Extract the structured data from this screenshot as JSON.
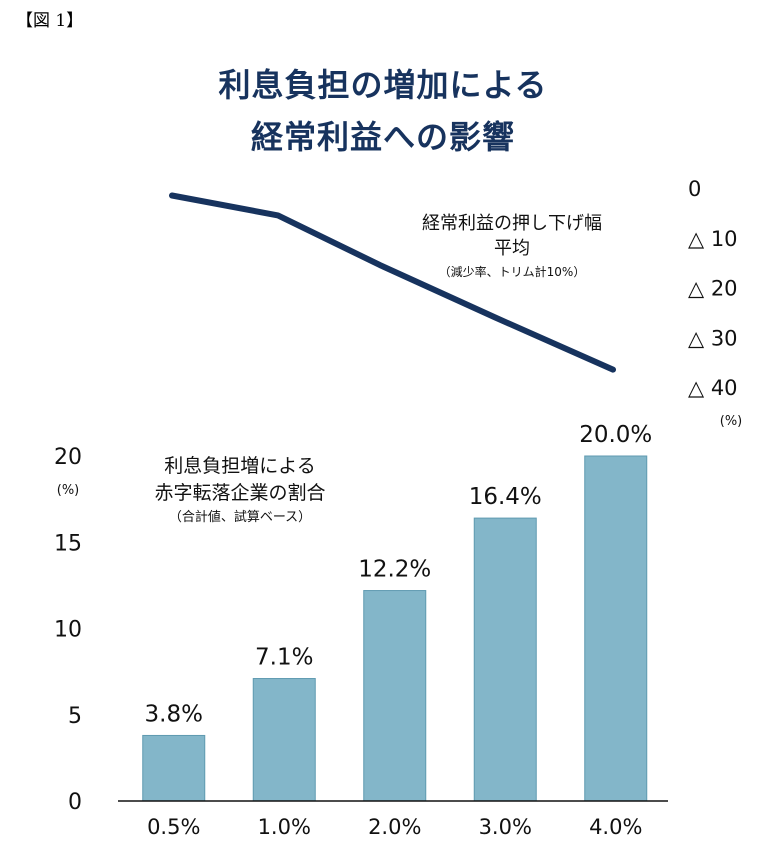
{
  "figure_label": "【図 1】",
  "colors": {
    "bar": "#83b6c9",
    "bar_edge": "#5f9ab0",
    "line": "#17335e",
    "text": "#111111",
    "title": "#17335e"
  },
  "chart_data": [
    {
      "type": "line",
      "title_lines": [
        "利息負担の増加による",
        "経常利益への影響"
      ],
      "series_label": [
        "経常利益の押し下げ幅",
        "平均"
      ],
      "series_note": "（減少率、トリム計10%）",
      "x_categories": [
        "0.5%",
        "1.0%",
        "2.0%",
        "3.0%",
        "4.0%"
      ],
      "values": [
        -1.5,
        -5.5,
        -15.5,
        -26,
        -36.5
      ],
      "ylim": [
        -40,
        0
      ],
      "y_ticks": [
        0,
        -10,
        -20,
        -30,
        -40
      ],
      "y_tick_labels": [
        "0",
        "△ 10",
        "△ 20",
        "△ 30",
        "△ 40"
      ],
      "y_unit": "(%)",
      "y_axis_side": "right"
    },
    {
      "type": "bar",
      "series_label": [
        "利息負担増による",
        "赤字転落企業の割合"
      ],
      "series_note": "（合計値、試算ベース）",
      "categories": [
        "0.5%",
        "1.0%",
        "2.0%",
        "3.0%",
        "4.0%"
      ],
      "values": [
        3.8,
        7.1,
        12.2,
        16.4,
        20.0
      ],
      "value_labels": [
        "3.8%",
        "7.1%",
        "12.2%",
        "16.4%",
        "20.0%"
      ],
      "ylim": [
        0,
        20
      ],
      "y_ticks": [
        0,
        5,
        10,
        15,
        20
      ],
      "y_tick_labels": [
        "0",
        "5",
        "10",
        "15",
        "20"
      ],
      "y_unit": "(%)",
      "y_axis_side": "left"
    }
  ]
}
